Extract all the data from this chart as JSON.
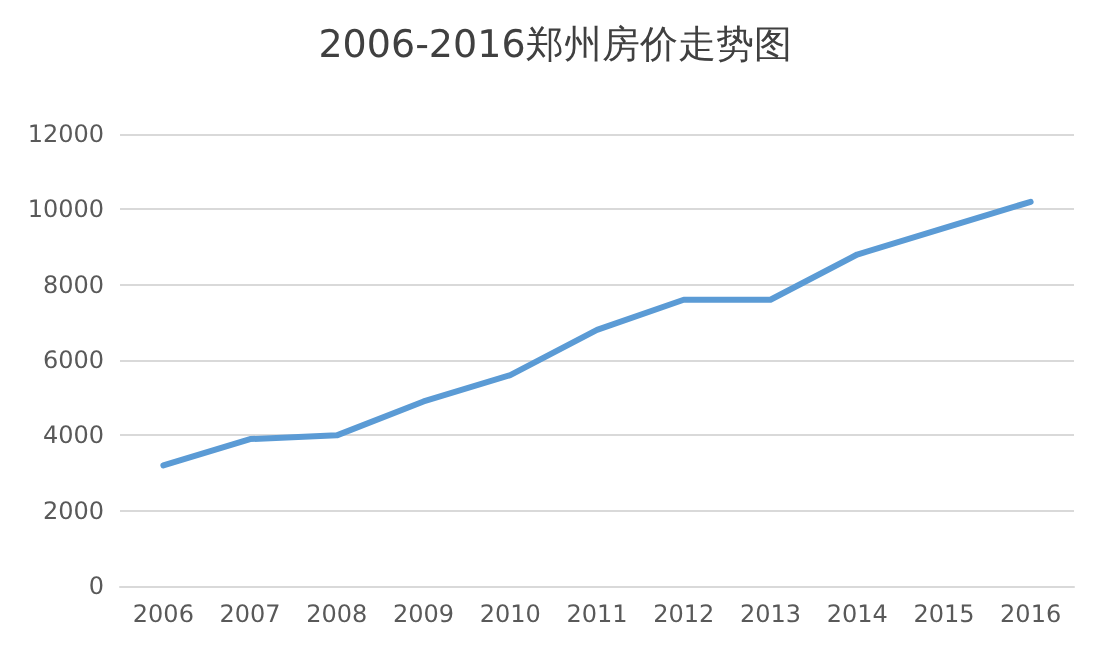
{
  "chart_data": {
    "type": "line",
    "title": "2006-2016郑州房价走势图",
    "categories": [
      "2006",
      "2007",
      "2008",
      "2009",
      "2010",
      "2011",
      "2012",
      "2013",
      "2014",
      "2015",
      "2016"
    ],
    "series": [
      {
        "color": "#5b9bd5",
        "values": [
          3200,
          3900,
          4000,
          4900,
          5600,
          6800,
          7600,
          7600,
          8800,
          9500,
          10200
        ]
      }
    ],
    "ylim": [
      0,
      12000
    ],
    "yticks": [
      0,
      2000,
      4000,
      6000,
      8000,
      10000,
      12000
    ],
    "grid": "y",
    "marker": "none",
    "line_style": "solid"
  }
}
